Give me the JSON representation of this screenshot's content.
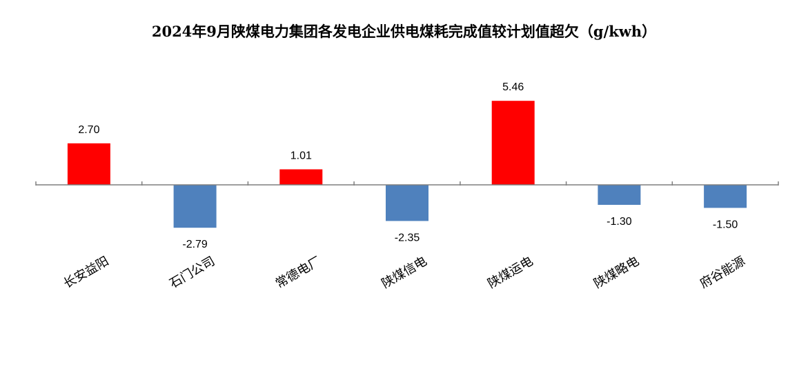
{
  "chart_data": {
    "type": "bar",
    "title": "2024年9月陕煤电力集团各发电企业供电煤耗完成值较计划值超欠（g/kwh）",
    "categories": [
      "长安益阳",
      "石门公司",
      "常德电厂",
      "陕煤信电",
      "陕煤运电",
      "陕煤略电",
      "府谷能源"
    ],
    "values": [
      2.7,
      -2.79,
      1.01,
      -2.35,
      5.46,
      -1.3,
      -1.5
    ],
    "value_labels": [
      "2.70",
      "-2.79",
      "1.01",
      "-2.35",
      "5.46",
      "-1.30",
      "-1.50"
    ],
    "ylim": [
      -4.5,
      6.5
    ],
    "grid": false,
    "legend": "none",
    "colors": {
      "positive": "#ff0000",
      "negative": "#4f81bd",
      "axis": "#7f7f7f"
    }
  }
}
